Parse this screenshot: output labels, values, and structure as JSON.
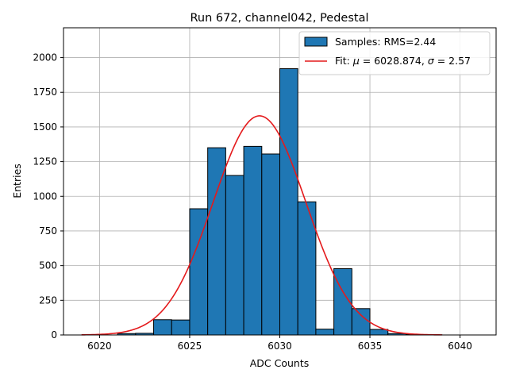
{
  "chart_data": {
    "type": "bar",
    "title": "Run 672, channel042, Pedestal",
    "xlabel": "ADC Counts",
    "ylabel": "Entries",
    "xlim": [
      6018.0,
      6042.0
    ],
    "ylim": [
      0,
      2215
    ],
    "x_ticks": [
      6020,
      6025,
      6030,
      6035,
      6040
    ],
    "y_ticks": [
      0,
      250,
      500,
      750,
      1000,
      1250,
      1500,
      1750,
      2000
    ],
    "grid": true,
    "legend_position": "top-right",
    "histogram": {
      "name": "Samples: RMS=2.44",
      "color": "#1f77b4",
      "bin_edges": [
        6021,
        6022,
        6023,
        6024,
        6025,
        6026,
        6027,
        6028,
        6029,
        6030,
        6031,
        6032,
        6033,
        6034,
        6035,
        6036,
        6037,
        6038,
        6039
      ],
      "counts": [
        10,
        12,
        110,
        108,
        910,
        1350,
        1150,
        1360,
        1305,
        1920,
        960,
        42,
        478,
        190,
        40,
        10,
        3,
        1
      ]
    },
    "fit": {
      "name": "Fit: μ = 6028.874, σ = 2.57",
      "color": "#e41a1c",
      "mu": 6028.874,
      "sigma": 2.57,
      "amplitude": 1580,
      "x_range": [
        6019,
        6039
      ]
    }
  },
  "legend": {
    "samples_label": "Samples: RMS=2.44",
    "fit_prefix": "Fit: ",
    "mu_symbol": "μ",
    "mu_text": " = 6028.874, ",
    "sigma_symbol": "σ",
    "sigma_text": " = 2.57"
  }
}
